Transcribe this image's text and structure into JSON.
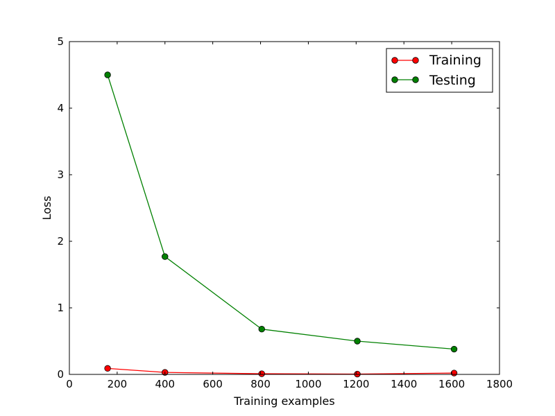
{
  "chart_data": {
    "type": "line",
    "title": "",
    "xlabel": "Training examples",
    "ylabel": "Loss",
    "xlim": [
      0,
      1800
    ],
    "ylim": [
      0,
      5
    ],
    "xticks": [
      0,
      200,
      400,
      600,
      800,
      1000,
      1200,
      1400,
      1600,
      1800
    ],
    "yticks": [
      0,
      1,
      2,
      3,
      4,
      5
    ],
    "grid": false,
    "legend_position": "top-right",
    "series": [
      {
        "name": "Training",
        "color": "#ff0000",
        "marker_color": "#ff0000",
        "x": [
          160,
          400,
          805,
          1205,
          1610
        ],
        "y": [
          0.09,
          0.03,
          0.01,
          0.005,
          0.02
        ]
      },
      {
        "name": "Testing",
        "color": "#008000",
        "marker_color": "#008000",
        "x": [
          160,
          400,
          805,
          1205,
          1610
        ],
        "y": [
          4.5,
          1.77,
          0.68,
          0.5,
          0.38
        ]
      }
    ]
  }
}
